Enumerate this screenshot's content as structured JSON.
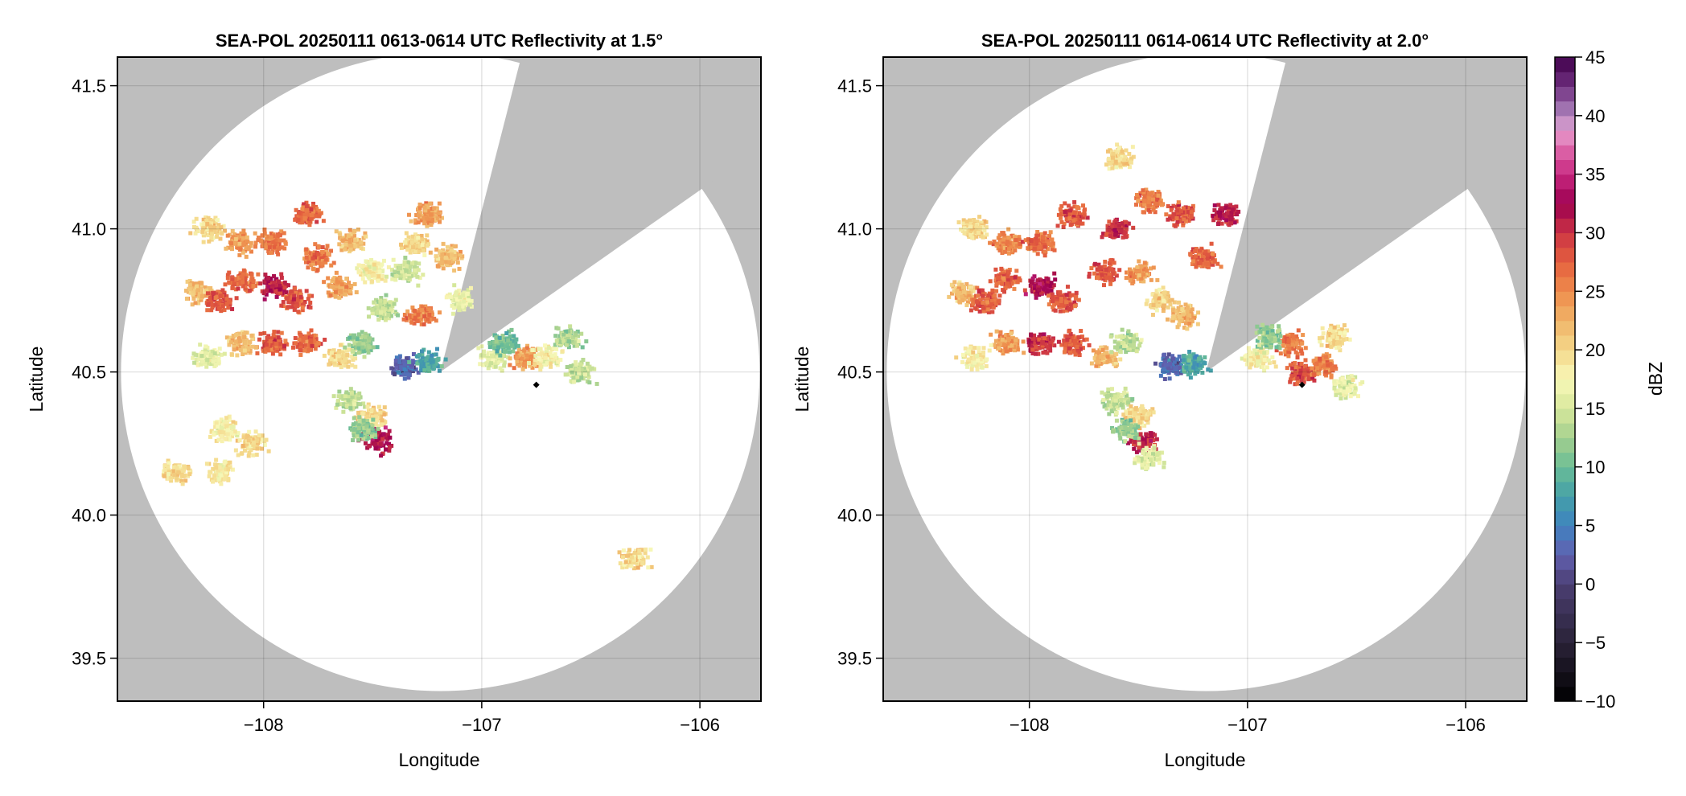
{
  "chart_data": {
    "type": "heatmap",
    "colorbar": {
      "label": "dBZ",
      "range": [
        -10,
        45
      ],
      "ticks": [
        "45",
        "40",
        "35",
        "30",
        "25",
        "20",
        "15",
        "10",
        "5",
        "0",
        "−5",
        "−10"
      ],
      "tick_values": [
        45,
        40,
        35,
        30,
        25,
        20,
        15,
        10,
        5,
        0,
        -5,
        -10
      ],
      "stops": [
        [
          -10,
          "#000000"
        ],
        [
          -5,
          "#2a2238"
        ],
        [
          0,
          "#4b3f72"
        ],
        [
          2.5,
          "#6260b0"
        ],
        [
          5,
          "#3f82c0"
        ],
        [
          7.5,
          "#44a0a8"
        ],
        [
          10,
          "#6abd96"
        ],
        [
          12.5,
          "#a4d08e"
        ],
        [
          15,
          "#d8e89c"
        ],
        [
          17.5,
          "#f8f8b8"
        ],
        [
          20,
          "#f4d88a"
        ],
        [
          22.5,
          "#f0b468"
        ],
        [
          25,
          "#ee8c4c"
        ],
        [
          27.5,
          "#e4603e"
        ],
        [
          30,
          "#cc3444"
        ],
        [
          32.5,
          "#9c0050"
        ],
        [
          35,
          "#c82880"
        ],
        [
          37.5,
          "#e070b0"
        ],
        [
          38.75,
          "#e6a0d0"
        ],
        [
          40,
          "#b088c0"
        ],
        [
          42.5,
          "#703080"
        ],
        [
          45,
          "#40004a"
        ]
      ]
    },
    "colors": {
      "background": "#bebebe",
      "coverage": "#ffffff",
      "marker": "#000000"
    },
    "radar": {
      "lon": -107.19,
      "lat": 40.5,
      "range_deg_lat": 1.115,
      "blocked_azimuth_deg": [
        14.4,
        55
      ]
    },
    "marker": {
      "lon": -106.75,
      "lat": 40.455
    },
    "panels": [
      {
        "title": "SEA-POL 20250111 0613-0614 UTC Reflectivity at 1.5°",
        "xlabel": "Longitude",
        "ylabel": "Latitude",
        "xlim": [
          -108.67,
          -105.72
        ],
        "ylim": [
          39.35,
          41.6
        ],
        "xticks": [
          {
            "v": -108,
            "label": "−108"
          },
          {
            "v": -107,
            "label": "−107"
          },
          {
            "v": -106,
            "label": "−106"
          }
        ],
        "yticks": [
          {
            "v": 39.5,
            "label": "39.5"
          },
          {
            "v": 40.0,
            "label": "40.0"
          },
          {
            "v": 40.5,
            "label": "40.5"
          },
          {
            "v": 41.0,
            "label": "41.0"
          },
          {
            "v": 41.5,
            "label": "41.5"
          }
        ],
        "echo_cells": [
          [
            -108.25,
            41.0,
            20
          ],
          [
            -108.1,
            40.95,
            24
          ],
          [
            -107.95,
            40.95,
            26
          ],
          [
            -107.8,
            41.05,
            27
          ],
          [
            -107.75,
            40.9,
            26
          ],
          [
            -108.1,
            40.82,
            27
          ],
          [
            -107.95,
            40.8,
            31
          ],
          [
            -107.85,
            40.75,
            28
          ],
          [
            -107.65,
            40.8,
            24
          ],
          [
            -107.6,
            40.95,
            22
          ],
          [
            -107.5,
            40.85,
            18
          ],
          [
            -108.3,
            40.78,
            22
          ],
          [
            -108.2,
            40.75,
            28
          ],
          [
            -107.45,
            40.72,
            14
          ],
          [
            -107.3,
            40.95,
            20
          ],
          [
            -107.35,
            40.85,
            15
          ],
          [
            -107.25,
            41.05,
            24
          ],
          [
            -107.15,
            40.9,
            22
          ],
          [
            -107.1,
            40.75,
            17
          ],
          [
            -107.28,
            40.7,
            26
          ],
          [
            -108.1,
            40.6,
            22
          ],
          [
            -107.95,
            40.6,
            28
          ],
          [
            -107.8,
            40.6,
            27
          ],
          [
            -107.65,
            40.55,
            20
          ],
          [
            -107.55,
            40.6,
            12
          ],
          [
            -108.25,
            40.55,
            16
          ],
          [
            -107.6,
            40.4,
            14
          ],
          [
            -107.5,
            40.35,
            20
          ],
          [
            -107.48,
            40.26,
            32
          ],
          [
            -107.55,
            40.3,
            12
          ],
          [
            -108.18,
            40.3,
            18
          ],
          [
            -108.2,
            40.15,
            19
          ],
          [
            -108.4,
            40.15,
            20
          ],
          [
            -108.05,
            40.25,
            20
          ],
          [
            -107.35,
            40.52,
            3
          ],
          [
            -107.25,
            40.53,
            8
          ],
          [
            -106.95,
            40.55,
            16
          ],
          [
            -106.8,
            40.55,
            24
          ],
          [
            -106.7,
            40.55,
            18
          ],
          [
            -106.6,
            40.62,
            13
          ],
          [
            -106.55,
            40.5,
            14
          ],
          [
            -106.9,
            40.6,
            10
          ],
          [
            -106.3,
            39.85,
            20
          ]
        ]
      },
      {
        "title": "SEA-POL 20250111 0614-0614 UTC Reflectivity at 2.0°",
        "xlabel": "Longitude",
        "ylabel": "Latitude",
        "xlim": [
          -108.67,
          -105.72
        ],
        "ylim": [
          39.35,
          41.6
        ],
        "xticks": [
          {
            "v": -108,
            "label": "−108"
          },
          {
            "v": -107,
            "label": "−107"
          },
          {
            "v": -106,
            "label": "−106"
          }
        ],
        "yticks": [
          {
            "v": 39.5,
            "label": "39.5"
          },
          {
            "v": 40.0,
            "label": "40.0"
          },
          {
            "v": 40.5,
            "label": "40.5"
          },
          {
            "v": 41.0,
            "label": "41.0"
          },
          {
            "v": 41.5,
            "label": "41.5"
          }
        ],
        "echo_cells": [
          [
            -108.25,
            41.0,
            20
          ],
          [
            -108.1,
            40.95,
            25
          ],
          [
            -107.95,
            40.95,
            27
          ],
          [
            -107.8,
            41.05,
            28
          ],
          [
            -107.6,
            41.0,
            30
          ],
          [
            -107.6,
            41.25,
            20
          ],
          [
            -107.45,
            41.1,
            26
          ],
          [
            -107.3,
            41.05,
            28
          ],
          [
            -107.1,
            41.05,
            31
          ],
          [
            -107.2,
            40.9,
            27
          ],
          [
            -108.1,
            40.82,
            27
          ],
          [
            -107.95,
            40.8,
            32
          ],
          [
            -107.85,
            40.75,
            28
          ],
          [
            -107.65,
            40.85,
            28
          ],
          [
            -107.5,
            40.85,
            24
          ],
          [
            -108.3,
            40.78,
            22
          ],
          [
            -108.2,
            40.75,
            28
          ],
          [
            -107.4,
            40.75,
            20
          ],
          [
            -107.3,
            40.7,
            22
          ],
          [
            -108.1,
            40.6,
            24
          ],
          [
            -107.95,
            40.6,
            30
          ],
          [
            -107.8,
            40.6,
            28
          ],
          [
            -107.65,
            40.55,
            22
          ],
          [
            -107.55,
            40.6,
            14
          ],
          [
            -108.25,
            40.55,
            18
          ],
          [
            -107.6,
            40.4,
            14
          ],
          [
            -107.5,
            40.35,
            20
          ],
          [
            -107.48,
            40.26,
            31
          ],
          [
            -107.55,
            40.3,
            12
          ],
          [
            -107.45,
            40.2,
            16
          ],
          [
            -107.35,
            40.52,
            3
          ],
          [
            -107.25,
            40.53,
            8
          ],
          [
            -106.95,
            40.55,
            18
          ],
          [
            -106.8,
            40.6,
            26
          ],
          [
            -106.75,
            40.5,
            28
          ],
          [
            -106.65,
            40.52,
            26
          ],
          [
            -106.6,
            40.62,
            20
          ],
          [
            -106.55,
            40.45,
            16
          ],
          [
            -106.9,
            40.62,
            12
          ]
        ]
      }
    ]
  }
}
